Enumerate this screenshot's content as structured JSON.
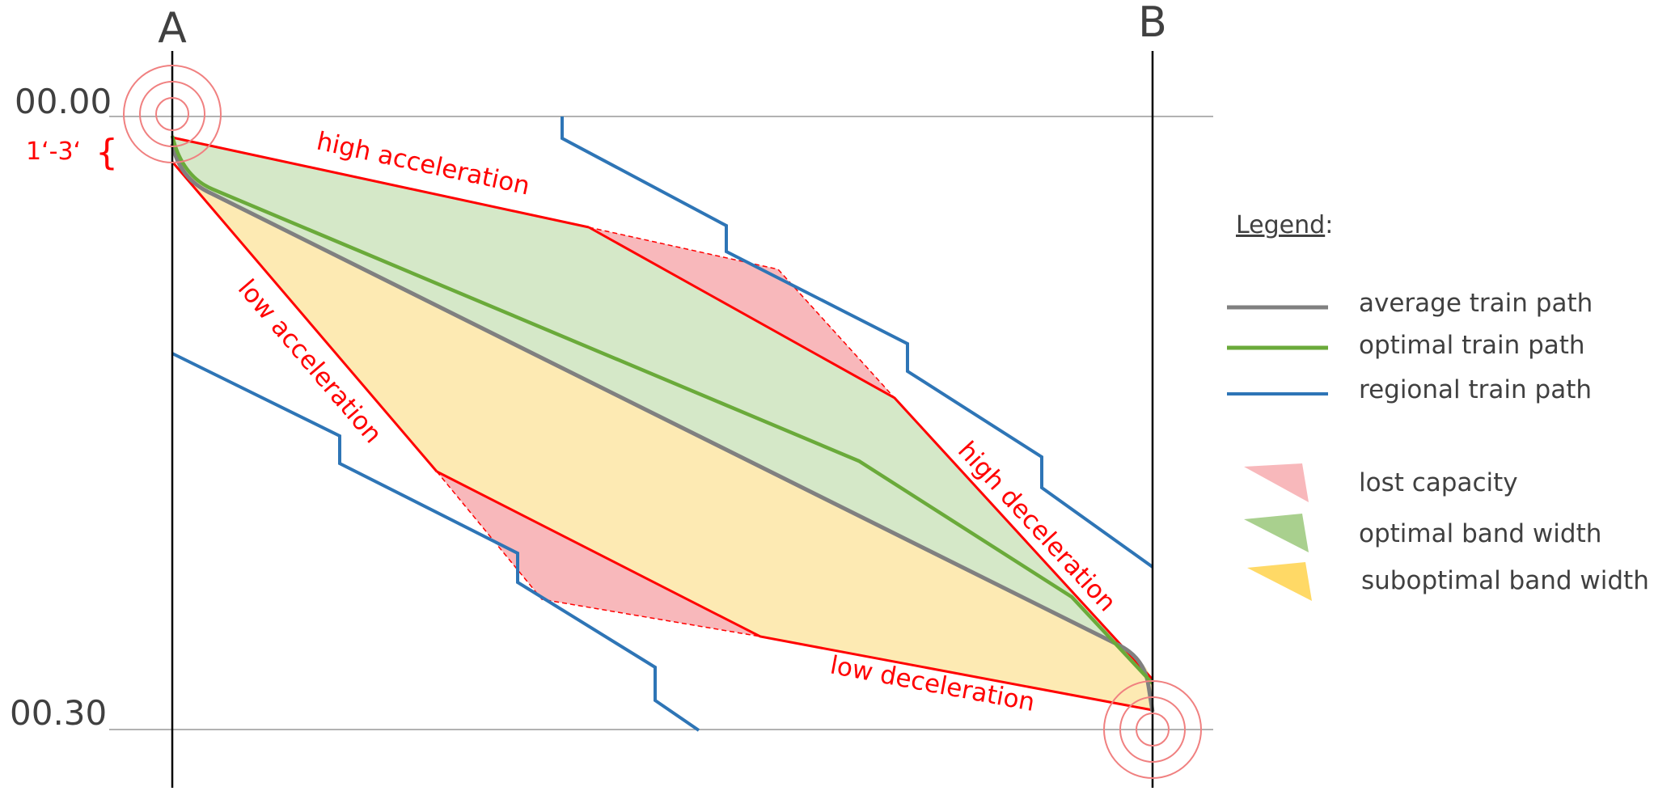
{
  "stations": {
    "start": "A",
    "end": "B"
  },
  "times": {
    "start": "00.00",
    "end": "00.30"
  },
  "headway_note": "1‘-3‘",
  "curve_labels": {
    "high_acceleration": "high acceleration",
    "low_acceleration": "low acceleration",
    "high_deceleration": "high deceleration",
    "low_deceleration": "low deceleration"
  },
  "legend": {
    "title": "Legend",
    "title_suffix": ":",
    "items": [
      {
        "label": "average train path",
        "kind": "line",
        "color": "#808080"
      },
      {
        "label": "optimal train path",
        "kind": "line",
        "color": "#6aaa3a"
      },
      {
        "label": "regional train path",
        "kind": "line",
        "color": "#2e75b6"
      },
      {
        "label": "lost capacity",
        "kind": "swatch",
        "color": "#f6a9aa"
      },
      {
        "label": "optimal band width",
        "kind": "swatch",
        "color": "#a9d08e"
      },
      {
        "label": "suboptimal band width",
        "kind": "swatch",
        "color": "#ffd966"
      }
    ]
  },
  "colors": {
    "boundary_red": "#ff0000",
    "axis": "#000000",
    "time_line": "#999999",
    "optimal_fill": "#d5e8c8",
    "suboptimal_fill": "#fdeab3",
    "lost_fill": "#f8b8bb",
    "text": "#404040"
  }
}
